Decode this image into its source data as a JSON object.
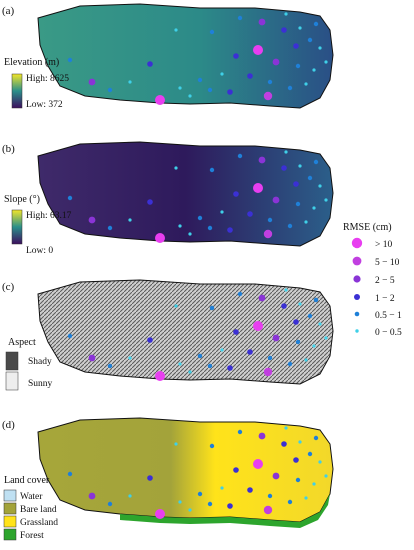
{
  "panels": [
    {
      "letter": "(a)",
      "legend_title": "Elevation (m)",
      "legend_high": "High: 8625",
      "legend_low": "Low: 372",
      "colors": {
        "base": "#2f7f8a",
        "ramp_top": "#f2e62a",
        "ramp_mid": "#2a8f8a",
        "ramp_bottom": "#3d0f5e"
      }
    },
    {
      "letter": "(b)",
      "legend_title": "Slope (°)",
      "legend_high": "High: 63.17",
      "legend_low": "Low: 0",
      "colors": {
        "base": "#3b1d63",
        "ramp_top": "#f2e62a",
        "ramp_mid": "#2a8f8a",
        "ramp_bottom": "#3d0f5e"
      }
    },
    {
      "letter": "(c)",
      "legend_title": "Aspect",
      "classes": [
        {
          "label": "Shady",
          "color": "#4a4a4a"
        },
        {
          "label": "Sunny",
          "color": "#eeeeee"
        }
      ]
    },
    {
      "letter": "(d)",
      "legend_title": "Land cover",
      "classes": [
        {
          "label": "Water",
          "color": "#bfe0f2"
        },
        {
          "label": "Bare land",
          "color": "#a3a33a"
        },
        {
          "label": "Grassland",
          "color": "#ffe31a"
        },
        {
          "label": "Forest",
          "color": "#2da52d"
        }
      ]
    }
  ],
  "rmse_legend": {
    "title": "RMSE (cm)",
    "classes": [
      {
        "label": "> 10",
        "color": "#e83ef0"
      },
      {
        "label": "5 − 10",
        "color": "#c13fe0"
      },
      {
        "label": "2 − 5",
        "color": "#8a34d6"
      },
      {
        "label": "1 − 2",
        "color": "#3b30d4"
      },
      {
        "label": "0.5 − 1",
        "color": "#1f80d8"
      },
      {
        "label": "0 − 0.5",
        "color": "#3fd0e8"
      }
    ]
  }
}
